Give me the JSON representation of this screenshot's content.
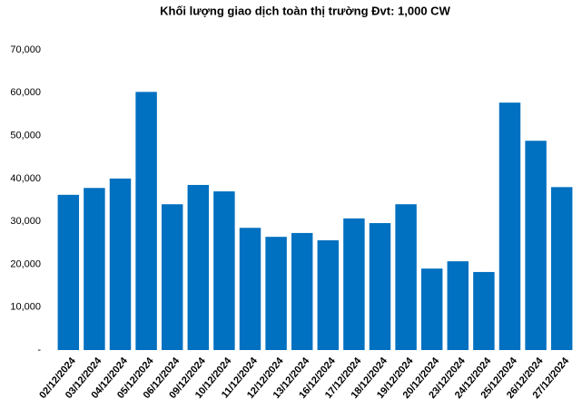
{
  "chart_data": {
    "type": "bar",
    "title": "Khối lượng giao dịch toàn thị trường Đvt: 1,000 CW",
    "categories": [
      "02/12/2024",
      "03/12/2024",
      "04/12/2024",
      "05/12/2024",
      "06/12/2024",
      "09/12/2024",
      "10/12/2024",
      "11/12/2024",
      "12/12/2024",
      "13/12/2024",
      "16/12/2024",
      "17/12/2024",
      "18/12/2024",
      "19/12/2024",
      "20/12/2024",
      "23/12/2024",
      "24/12/2024",
      "25/12/2024",
      "26/12/2024",
      "27/12/2024"
    ],
    "values": [
      36200,
      37800,
      40000,
      60200,
      34000,
      38500,
      37000,
      28500,
      26400,
      27300,
      25600,
      30700,
      29600,
      34000,
      19000,
      20700,
      18200,
      57700,
      48800,
      38000
    ],
    "color": "#0070c0",
    "ylim": [
      0,
      70000
    ],
    "yticks": [
      {
        "value": 0,
        "label": "-"
      },
      {
        "value": 10000,
        "label": "10,000"
      },
      {
        "value": 20000,
        "label": "20,000"
      },
      {
        "value": 30000,
        "label": "30,000"
      },
      {
        "value": 40000,
        "label": "40,000"
      },
      {
        "value": 50000,
        "label": "50,000"
      },
      {
        "value": 60000,
        "label": "60,000"
      },
      {
        "value": 70000,
        "label": "70,000"
      }
    ],
    "grid": false
  }
}
